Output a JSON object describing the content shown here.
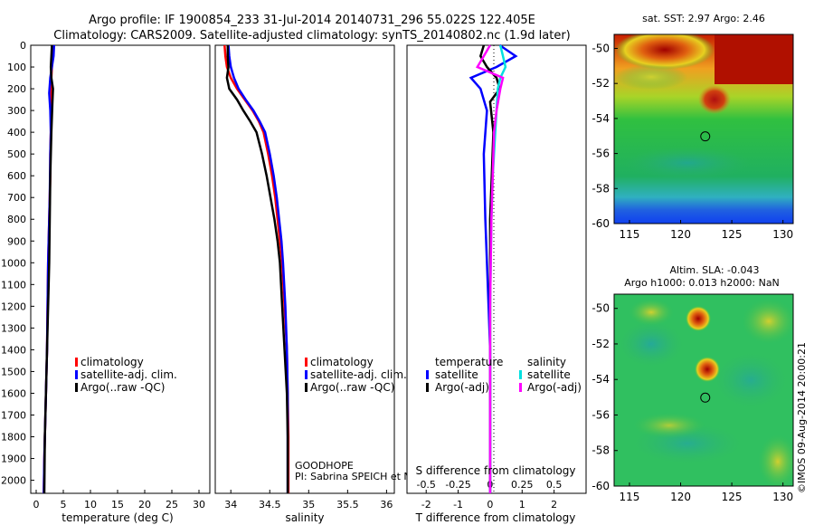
{
  "header": {
    "line1": "Argo profile: IF 1900854_233 31-Jul-2014 20140731_296 55.022S 122.405E",
    "line2": "Climatology: CARS2009. Satellite-adjusted climatology: synTS_20140802.nc (1.9d later)"
  },
  "depth_axis": {
    "ticks": [
      0,
      100,
      200,
      300,
      400,
      500,
      600,
      700,
      800,
      900,
      1000,
      1100,
      1200,
      1300,
      1400,
      1500,
      1600,
      1700,
      1800,
      1900,
      2000
    ],
    "range": [
      0,
      2060
    ]
  },
  "colors": {
    "climatology": "#ff0000",
    "satellite": "#0000ff",
    "argo": "#000000",
    "satellite_salinity": "#00e0e0",
    "argo_salinity": "#ff00ff"
  },
  "chart_data": [
    {
      "type": "line",
      "id": "temperature",
      "xlabel": "temperature (deg C)",
      "xlim": [
        -1,
        32
      ],
      "xticks": [
        0,
        5,
        10,
        15,
        20,
        25,
        30
      ],
      "ylim": [
        0,
        2060
      ],
      "legend": {
        "placement": "lower-center",
        "items": [
          {
            "label": "climatology",
            "color": "#ff0000"
          },
          {
            "label": "satellite-adj. clim.",
            "color": "#0000ff"
          },
          {
            "label": "Argo(..raw -QC)",
            "color": "#000000"
          }
        ]
      },
      "series": [
        {
          "name": "climatology",
          "color": "#ff0000",
          "x": [
            3.1,
            3.0,
            2.9,
            2.8,
            2.7,
            2.7,
            2.7,
            2.6,
            2.6,
            2.5,
            2.4,
            2.3,
            2.2,
            2.1,
            2.0,
            1.9,
            1.8,
            1.7,
            1.6,
            1.5,
            1.4
          ],
          "y": [
            0,
            50,
            100,
            150,
            200,
            300,
            400,
            500,
            600,
            700,
            800,
            900,
            1000,
            1200,
            1400,
            1500,
            1600,
            1700,
            1800,
            1900,
            2060
          ]
        },
        {
          "name": "satellite-adj. clim.",
          "color": "#0000ff",
          "x": [
            3.3,
            3.2,
            2.9,
            2.6,
            2.4,
            2.6,
            2.7,
            2.6,
            2.5,
            2.4,
            2.3,
            2.2,
            2.1,
            2.0,
            1.9,
            1.8,
            1.7,
            1.6,
            1.5,
            1.4
          ],
          "y": [
            0,
            50,
            100,
            150,
            220,
            300,
            400,
            500,
            700,
            800,
            900,
            1000,
            1200,
            1400,
            1500,
            1600,
            1700,
            1800,
            1900,
            2060
          ]
        },
        {
          "name": "Argo(..raw -QC)",
          "color": "#000000",
          "x": [
            2.9,
            2.8,
            2.7,
            2.8,
            3.1,
            3.0,
            2.8,
            2.6,
            2.5,
            2.4,
            2.2,
            2.0,
            1.8,
            1.6,
            1.5
          ],
          "y": [
            0,
            50,
            100,
            150,
            200,
            260,
            400,
            600,
            800,
            1000,
            1200,
            1400,
            1600,
            1800,
            2060
          ]
        }
      ]
    },
    {
      "type": "line",
      "id": "salinity",
      "xlabel": "salinity",
      "xlim": [
        33.8,
        36.1
      ],
      "xticks": [
        34,
        34.5,
        35,
        35.5,
        36
      ],
      "xtick_labels": [
        "34",
        "34.5",
        "35",
        "35.5",
        "36"
      ],
      "ylim": [
        0,
        2060
      ],
      "annotation": [
        "GOODHOPE",
        "PI: Sabrina SPEICH et Michel ARHAN"
      ],
      "legend": {
        "placement": "lower-center",
        "items": [
          {
            "label": "climatology",
            "color": "#ff0000"
          },
          {
            "label": "satellite-adj. clim.",
            "color": "#0000ff"
          },
          {
            "label": "Argo(..raw -QC)",
            "color": "#000000"
          }
        ]
      },
      "series": [
        {
          "name": "climatology",
          "color": "#ff0000",
          "x": [
            33.92,
            33.93,
            33.95,
            34.0,
            34.08,
            34.18,
            34.28,
            34.36,
            34.42,
            34.48,
            34.53,
            34.57,
            34.6,
            34.63,
            34.66,
            34.69,
            34.72,
            34.73,
            34.74,
            34.74
          ],
          "y": [
            0,
            50,
            100,
            150,
            200,
            250,
            300,
            350,
            400,
            500,
            600,
            700,
            800,
            900,
            1000,
            1200,
            1400,
            1600,
            1800,
            2060
          ]
        },
        {
          "name": "satellite-adj. clim.",
          "color": "#0000ff",
          "x": [
            33.97,
            33.98,
            34.0,
            34.04,
            34.1,
            34.19,
            34.29,
            34.37,
            34.44,
            34.5,
            34.55,
            34.59,
            34.62,
            34.65,
            34.67,
            34.7,
            34.72,
            34.73,
            34.73,
            34.73
          ],
          "y": [
            0,
            50,
            100,
            150,
            200,
            250,
            300,
            350,
            400,
            500,
            600,
            700,
            800,
            900,
            1000,
            1200,
            1400,
            1600,
            1800,
            2060
          ]
        },
        {
          "name": "Argo(..raw -QC)",
          "color": "#000000",
          "x": [
            33.96,
            33.96,
            33.97,
            33.95,
            33.98,
            34.08,
            34.16,
            34.25,
            34.33,
            34.4,
            34.46,
            34.51,
            34.56,
            34.6,
            34.63,
            34.66,
            34.69,
            34.72,
            34.73,
            34.73
          ],
          "y": [
            0,
            50,
            100,
            150,
            200,
            250,
            300,
            350,
            400,
            500,
            600,
            700,
            800,
            900,
            1000,
            1200,
            1400,
            1600,
            1800,
            2060
          ]
        }
      ]
    },
    {
      "type": "line",
      "id": "differences",
      "xlabel": "T difference from climatology",
      "xlim": [
        -2.6,
        3.0
      ],
      "xticks": [
        -2,
        -1,
        0,
        1,
        2
      ],
      "title_bottom": "S difference from climatology",
      "top_xticks": [
        -0.5,
        -0.25,
        0,
        0.25,
        0.5
      ],
      "top_xtick_labels": [
        "-0.5",
        "-0.25",
        "0",
        "0.25",
        "0.5"
      ],
      "ylim": [
        0,
        2060
      ],
      "legend": {
        "placement": "lower-center",
        "groups": [
          {
            "title": "temperature",
            "items": [
              {
                "label": "satellite",
                "color": "#0000ff"
              },
              {
                "label": "Argo(-adj)",
                "color": "#000000"
              }
            ]
          },
          {
            "title": "salinity",
            "items": [
              {
                "label": "satellite",
                "color": "#00e0e0"
              },
              {
                "label": "Argo(-adj)",
                "color": "#ff00ff"
              }
            ]
          }
        ]
      },
      "series": [
        {
          "name": "temperature satellite",
          "color": "#0000ff",
          "x": [
            0.3,
            0.8,
            0.2,
            -0.6,
            -0.3,
            -0.1,
            -0.2,
            -0.15,
            -0.1,
            -0.05,
            0.0,
            0.0,
            0.0,
            0.0
          ],
          "y": [
            0,
            50,
            100,
            150,
            200,
            300,
            500,
            800,
            1000,
            1200,
            1400,
            1600,
            1800,
            2060
          ]
        },
        {
          "name": "temperature Argo(-adj)",
          "color": "#000000",
          "x": [
            -0.2,
            -0.3,
            -0.1,
            0.2,
            0.3,
            0.0,
            0.1,
            0.05,
            0.0,
            0.0,
            0.0
          ],
          "y": [
            0,
            50,
            100,
            150,
            200,
            260,
            400,
            600,
            800,
            1200,
            2060
          ]
        },
        {
          "name": "salinity satellite",
          "color": "#00e0e0",
          "x": [
            0.08,
            0.1,
            0.12,
            0.08,
            0.06,
            0.05,
            0.04,
            0.02,
            0.01,
            0.0,
            0.0
          ],
          "y": [
            0,
            50,
            100,
            150,
            200,
            300,
            400,
            600,
            800,
            1200,
            2060
          ]
        },
        {
          "name": "salinity Argo(-adj)",
          "color": "#ff00ff",
          "x": [
            0.0,
            -0.05,
            -0.1,
            0.1,
            0.08,
            0.05,
            0.03,
            0.02,
            0.01,
            0.0,
            0.0
          ],
          "y": [
            0,
            50,
            100,
            150,
            200,
            300,
            400,
            600,
            800,
            1200,
            2060
          ]
        }
      ]
    },
    {
      "type": "heatmap",
      "id": "sst-map",
      "title": "sat. SST: 2.97 Argo: 2.46",
      "xlim": [
        113.5,
        131
      ],
      "ylim": [
        -60,
        -49.2
      ],
      "xticks": [
        115,
        120,
        125,
        130
      ],
      "yticks": [
        -50,
        -52,
        -54,
        -56,
        -58,
        -60
      ],
      "marker": {
        "lon": 122.405,
        "lat": -55.022
      }
    },
    {
      "type": "heatmap",
      "id": "sla-map",
      "title": "Altim. SLA: -0.043",
      "subtitle": "Argo h1000: 0.013 h2000: NaN",
      "side_label": "©IMOS 09-Aug-2014 20:00:21",
      "xlim": [
        113.5,
        131
      ],
      "ylim": [
        -60,
        -49.2
      ],
      "xticks": [
        115,
        120,
        125,
        130
      ],
      "yticks": [
        -50,
        -52,
        -54,
        -56,
        -58,
        -60
      ],
      "marker": {
        "lon": 122.405,
        "lat": -55.022
      }
    }
  ]
}
